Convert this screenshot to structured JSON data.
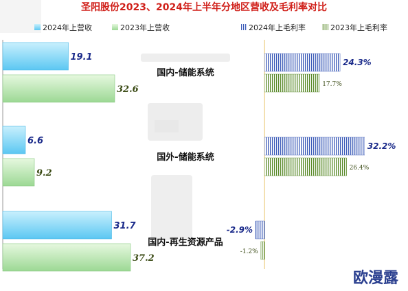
{
  "chart_data": {
    "type": "bar",
    "title": "圣阳股份2023、2024年上半年分地区营收及毛利率对比",
    "categories": [
      "国内-储能系统",
      "国外-储能系统",
      "国内-再生资源产品"
    ],
    "revenue_series": [
      {
        "name": "2024年上营收",
        "values": [
          19.1,
          6.6,
          31.7
        ],
        "labels": [
          "19.1",
          "6.6",
          "31.7"
        ]
      },
      {
        "name": "2023年上营收",
        "values": [
          32.6,
          9.2,
          37.2
        ],
        "labels": [
          "32.6",
          "9.2",
          "37.2"
        ]
      }
    ],
    "margin_series": [
      {
        "name": "2024年上毛利率",
        "values": [
          24.3,
          32.2,
          -2.9
        ],
        "labels": [
          "24.3%",
          "32.2%",
          "-2.9%"
        ]
      },
      {
        "name": "2023年上毛利率",
        "values": [
          17.7,
          26.4,
          -1.2
        ],
        "labels": [
          "17.7%",
          "26.4%",
          "-1.2%"
        ]
      }
    ],
    "revenue_xlim": [
      0,
      40
    ],
    "margin_xlim": [
      -6,
      36
    ],
    "legend_position": "top",
    "grid": false,
    "colors": {
      "rev2024": "#7fd6f7",
      "rev2023": "#b4e6b0",
      "mar2024": "#3d5cb8",
      "mar2023": "#5a8a2a",
      "title": "#d0201a"
    }
  },
  "watermark": {
    "logo": "欧漫露"
  }
}
